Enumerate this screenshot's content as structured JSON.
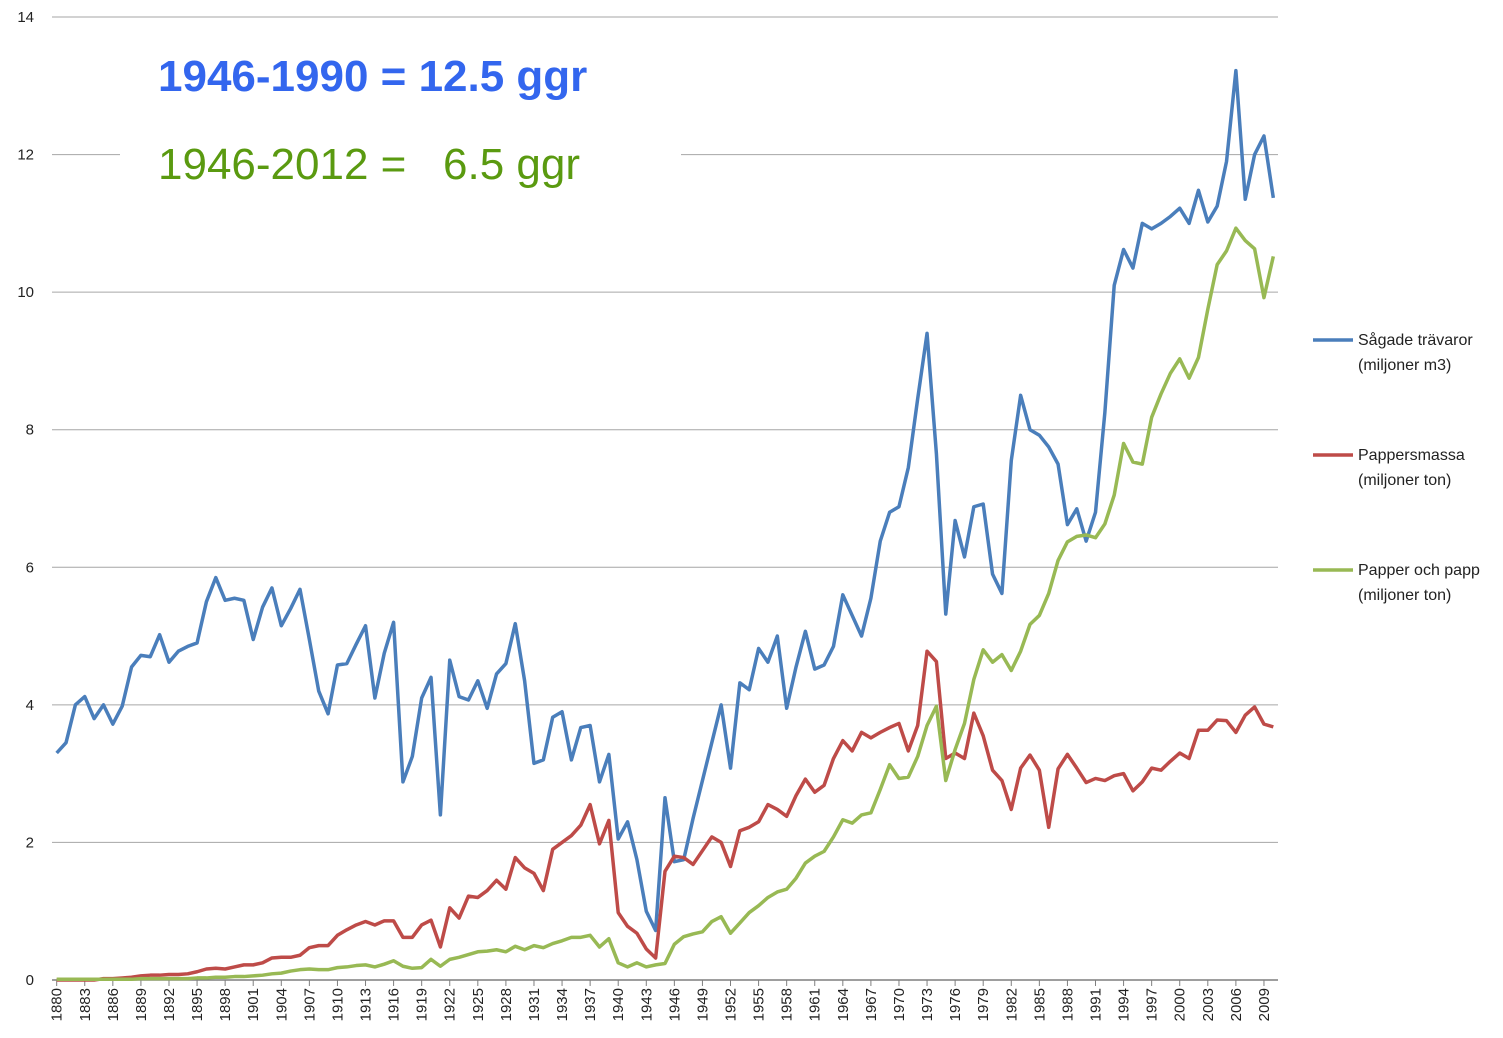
{
  "chart_data": {
    "type": "line",
    "annotations": [
      "1946-1990 = 12.5 ggr",
      "1946-2012 =   6.5 ggr"
    ],
    "x": [
      1880,
      1881,
      1882,
      1883,
      1884,
      1885,
      1886,
      1887,
      1888,
      1889,
      1890,
      1891,
      1892,
      1893,
      1894,
      1895,
      1896,
      1897,
      1898,
      1899,
      1900,
      1901,
      1902,
      1903,
      1904,
      1905,
      1906,
      1907,
      1908,
      1909,
      1910,
      1911,
      1912,
      1913,
      1914,
      1915,
      1916,
      1917,
      1918,
      1919,
      1920,
      1921,
      1922,
      1923,
      1924,
      1925,
      1926,
      1927,
      1928,
      1929,
      1930,
      1931,
      1932,
      1933,
      1934,
      1935,
      1936,
      1937,
      1938,
      1939,
      1940,
      1941,
      1942,
      1943,
      1944,
      1945,
      1946,
      1947,
      1948,
      1949,
      1950,
      1951,
      1952,
      1953,
      1954,
      1955,
      1956,
      1957,
      1958,
      1959,
      1960,
      1961,
      1962,
      1963,
      1964,
      1965,
      1966,
      1967,
      1968,
      1969,
      1970,
      1971,
      1972,
      1973,
      1974,
      1975,
      1976,
      1977,
      1978,
      1979,
      1980,
      1981,
      1982,
      1983,
      1984,
      1985,
      1986,
      1987,
      1988,
      1989,
      1990,
      1991,
      1992,
      1993,
      1994,
      1995,
      1996,
      1997,
      1998,
      1999,
      2000,
      2001,
      2002,
      2003,
      2004,
      2005,
      2006,
      2007,
      2008,
      2009,
      2010
    ],
    "xlim": [
      1879.5,
      2010.5
    ],
    "xticks": [
      1880,
      1883,
      1886,
      1889,
      1892,
      1895,
      1898,
      1901,
      1904,
      1907,
      1910,
      1913,
      1916,
      1919,
      1922,
      1925,
      1928,
      1931,
      1934,
      1937,
      1940,
      1943,
      1946,
      1949,
      1952,
      1955,
      1958,
      1961,
      1964,
      1967,
      1970,
      1973,
      1976,
      1979,
      1982,
      1985,
      1988,
      1991,
      1994,
      1997,
      2000,
      2003,
      2006,
      2009
    ],
    "ylim": [
      0,
      14
    ],
    "yticks": [
      0,
      2,
      4,
      6,
      8,
      10,
      12,
      14
    ],
    "grid": true,
    "series": [
      {
        "name": "Sågade trävaror (miljoner m3)",
        "color": "#4a7ebb",
        "values": [
          3.3,
          3.45,
          4.0,
          4.12,
          3.8,
          4.0,
          3.72,
          3.98,
          4.55,
          4.72,
          4.7,
          5.02,
          4.62,
          4.78,
          4.85,
          4.9,
          5.5,
          5.85,
          5.52,
          5.55,
          5.52,
          4.95,
          5.42,
          5.7,
          5.15,
          5.4,
          5.68,
          4.95,
          4.2,
          3.87,
          4.58,
          4.6,
          4.88,
          5.15,
          4.1,
          4.75,
          5.2,
          2.88,
          3.25,
          4.1,
          4.4,
          2.4,
          4.65,
          4.12,
          4.07,
          4.35,
          3.95,
          4.45,
          4.6,
          5.18,
          4.35,
          3.15,
          3.2,
          3.82,
          3.9,
          3.2,
          3.67,
          3.7,
          2.88,
          3.28,
          2.05,
          2.3,
          1.75,
          1.0,
          0.72,
          2.65,
          1.72,
          1.75,
          2.35,
          2.9,
          3.45,
          4.0,
          3.08,
          4.32,
          4.22,
          4.82,
          4.62,
          5.0,
          3.95,
          4.55,
          5.07,
          4.52,
          4.58,
          4.85,
          5.6,
          5.3,
          5.0,
          5.55,
          6.38,
          6.8,
          6.88,
          7.45,
          8.45,
          9.4,
          7.65,
          5.32,
          6.68,
          6.15,
          6.88,
          6.92,
          5.9,
          5.62,
          7.55,
          8.5,
          8.0,
          7.92,
          7.75,
          7.5,
          6.62,
          6.85,
          6.38,
          6.8,
          8.25,
          10.1,
          10.62,
          10.35,
          11.0,
          10.92,
          11.0,
          11.1,
          11.22,
          11.0,
          11.48,
          11.02,
          11.25,
          11.9,
          13.22,
          11.35,
          12.0,
          12.27,
          11.37
        ]
      },
      {
        "name": "Pappersmassa (miljoner ton)",
        "color": "#be4b48",
        "values": [
          0,
          0,
          0,
          0,
          0,
          0.02,
          0.02,
          0.03,
          0.04,
          0.06,
          0.07,
          0.07,
          0.08,
          0.08,
          0.09,
          0.12,
          0.16,
          0.17,
          0.16,
          0.19,
          0.22,
          0.22,
          0.25,
          0.32,
          0.33,
          0.33,
          0.36,
          0.47,
          0.5,
          0.5,
          0.65,
          0.73,
          0.8,
          0.85,
          0.8,
          0.86,
          0.86,
          0.62,
          0.62,
          0.8,
          0.87,
          0.48,
          1.05,
          0.9,
          1.22,
          1.2,
          1.3,
          1.45,
          1.32,
          1.78,
          1.63,
          1.55,
          1.3,
          1.9,
          2.0,
          2.1,
          2.25,
          2.55,
          1.98,
          2.32,
          0.98,
          0.78,
          0.68,
          0.45,
          0.32,
          1.58,
          1.8,
          1.78,
          1.68,
          1.88,
          2.08,
          2.0,
          1.65,
          2.17,
          2.22,
          2.3,
          2.55,
          2.48,
          2.38,
          2.68,
          2.92,
          2.73,
          2.83,
          3.22,
          3.48,
          3.33,
          3.6,
          3.52,
          3.6,
          3.67,
          3.73,
          3.33,
          3.7,
          4.78,
          4.63,
          3.22,
          3.3,
          3.22,
          3.88,
          3.55,
          3.05,
          2.9,
          2.48,
          3.08,
          3.27,
          3.05,
          2.22,
          3.07,
          3.28,
          3.08,
          2.87,
          2.93,
          2.9,
          2.97,
          3.0,
          2.75,
          2.88,
          3.08,
          3.05,
          3.18,
          3.3,
          3.22,
          3.63,
          3.63,
          3.78,
          3.77,
          3.6,
          3.85,
          3.97,
          3.72,
          3.68
        ]
      },
      {
        "name": "Papper och papp (miljoner ton)",
        "color": "#98b954",
        "values": [
          0.01,
          0.01,
          0.01,
          0.01,
          0.01,
          0.01,
          0.01,
          0.01,
          0.01,
          0.02,
          0.02,
          0.02,
          0.02,
          0.02,
          0.02,
          0.03,
          0.03,
          0.04,
          0.04,
          0.05,
          0.05,
          0.06,
          0.07,
          0.09,
          0.1,
          0.13,
          0.15,
          0.16,
          0.15,
          0.15,
          0.18,
          0.19,
          0.21,
          0.22,
          0.19,
          0.23,
          0.28,
          0.2,
          0.17,
          0.18,
          0.3,
          0.2,
          0.3,
          0.33,
          0.37,
          0.41,
          0.42,
          0.44,
          0.41,
          0.49,
          0.44,
          0.5,
          0.47,
          0.53,
          0.57,
          0.62,
          0.62,
          0.65,
          0.48,
          0.6,
          0.25,
          0.19,
          0.25,
          0.19,
          0.22,
          0.24,
          0.52,
          0.63,
          0.67,
          0.7,
          0.85,
          0.92,
          0.68,
          0.83,
          0.98,
          1.08,
          1.2,
          1.28,
          1.32,
          1.48,
          1.7,
          1.8,
          1.87,
          2.08,
          2.33,
          2.28,
          2.4,
          2.43,
          2.77,
          3.13,
          2.93,
          2.95,
          3.25,
          3.7,
          3.98,
          2.9,
          3.35,
          3.73,
          4.37,
          4.8,
          4.62,
          4.73,
          4.5,
          4.78,
          5.17,
          5.3,
          5.62,
          6.1,
          6.37,
          6.45,
          6.47,
          6.43,
          6.63,
          7.05,
          7.8,
          7.53,
          7.5,
          8.18,
          8.52,
          8.82,
          9.03,
          8.75,
          9.05,
          9.75,
          10.4,
          10.6,
          10.93,
          10.75,
          10.63,
          9.92,
          10.52
        ]
      }
    ]
  }
}
